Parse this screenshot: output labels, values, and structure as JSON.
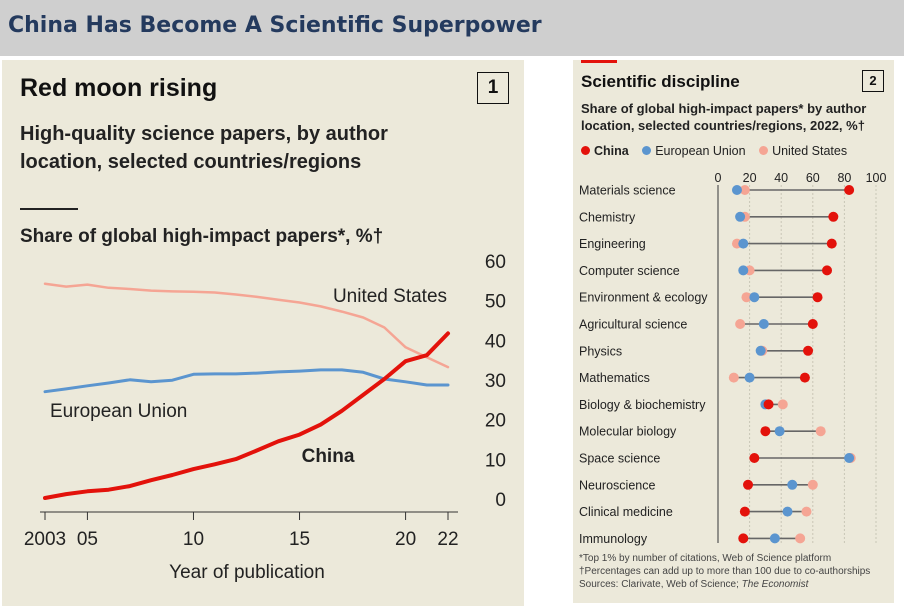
{
  "banner": {
    "title": "China Has Become A Scientific Superpower"
  },
  "panel1": {
    "title": "Red moon rising",
    "number": "1",
    "subtitle": "High-quality science papers, by author location, selected countries/regions",
    "measure": "Share of global high-impact papers*, %†"
  },
  "panel2": {
    "title": "Scientific discipline",
    "number": "2",
    "subtitle": "Share of global high-impact papers* by author location, selected countries/regions, 2022, %†",
    "legend": {
      "china": "China",
      "eu": "European Union",
      "us": "United States"
    },
    "footnote1": "*Top 1% by number of citations, Web of Science platform",
    "footnote2": "†Percentages can add up to more than 100 due to co-authorships",
    "sources_prefix": "Sources: Clarivate, Web of Science; ",
    "sources_italic": "The Economist"
  },
  "colors": {
    "china": "#e3120b",
    "eu": "#5b95cf",
    "us": "#f5a594",
    "connector": "#666666"
  },
  "chart_data": [
    {
      "type": "line",
      "title": "Red moon rising",
      "ylabel": "Share of global high-impact papers*, %†",
      "xlabel": "Year of publication",
      "ylim": [
        0,
        60
      ],
      "xlim": [
        2003,
        2022
      ],
      "yticks": [
        0,
        10,
        20,
        30,
        40,
        50,
        60
      ],
      "xticks": [
        2003,
        2005,
        2010,
        2015,
        2020,
        2022
      ],
      "xtick_labels": [
        "2003",
        "05",
        "10",
        "15",
        "20",
        "22"
      ],
      "grid": false,
      "series": [
        {
          "name": "United States",
          "color": "#f5a594",
          "points": [
            [
              2003,
              54.5
            ],
            [
              2004,
              53.8
            ],
            [
              2005,
              54.3
            ],
            [
              2006,
              53.5
            ],
            [
              2007,
              53.2
            ],
            [
              2008,
              52.8
            ],
            [
              2009,
              52.6
            ],
            [
              2010,
              52.5
            ],
            [
              2011,
              52.3
            ],
            [
              2012,
              51.8
            ],
            [
              2013,
              51.2
            ],
            [
              2014,
              50.5
            ],
            [
              2015,
              49.8
            ],
            [
              2016,
              48.8
            ],
            [
              2017,
              47.5
            ],
            [
              2018,
              46.0
            ],
            [
              2019,
              43.5
            ],
            [
              2020,
              38.5
            ],
            [
              2021,
              36.0
            ],
            [
              2022,
              33.5
            ]
          ]
        },
        {
          "name": "European Union",
          "color": "#5b95cf",
          "points": [
            [
              2003,
              27.3
            ],
            [
              2004,
              28.0
            ],
            [
              2005,
              28.8
            ],
            [
              2006,
              29.5
            ],
            [
              2007,
              30.3
            ],
            [
              2008,
              29.8
            ],
            [
              2009,
              30.2
            ],
            [
              2010,
              31.7
            ],
            [
              2011,
              31.8
            ],
            [
              2012,
              31.8
            ],
            [
              2013,
              32.0
            ],
            [
              2014,
              32.3
            ],
            [
              2015,
              32.5
            ],
            [
              2016,
              32.8
            ],
            [
              2017,
              32.8
            ],
            [
              2018,
              32.2
            ],
            [
              2019,
              30.5
            ],
            [
              2020,
              29.8
            ],
            [
              2021,
              29.0
            ],
            [
              2022,
              29.0
            ]
          ]
        },
        {
          "name": "China",
          "color": "#e3120b",
          "points": [
            [
              2003,
              0.5
            ],
            [
              2004,
              1.5
            ],
            [
              2005,
              2.2
            ],
            [
              2006,
              2.6
            ],
            [
              2007,
              3.5
            ],
            [
              2008,
              5.0
            ],
            [
              2009,
              6.3
            ],
            [
              2010,
              7.8
            ],
            [
              2011,
              9.0
            ],
            [
              2012,
              10.3
            ],
            [
              2013,
              12.5
            ],
            [
              2014,
              14.8
            ],
            [
              2015,
              16.5
            ],
            [
              2016,
              19.0
            ],
            [
              2017,
              22.5
            ],
            [
              2018,
              26.5
            ],
            [
              2019,
              30.5
            ],
            [
              2020,
              35.0
            ],
            [
              2021,
              36.5
            ],
            [
              2022,
              42.0
            ]
          ]
        }
      ]
    },
    {
      "type": "dot",
      "title": "Scientific discipline",
      "xlim": [
        0,
        100
      ],
      "xticks": [
        0,
        20,
        40,
        60,
        80,
        100
      ],
      "grid": true,
      "legend": "top",
      "categories": [
        "Materials science",
        "Chemistry",
        "Engineering",
        "Computer science",
        "Environment & ecology",
        "Agricultural science",
        "Physics",
        "Mathematics",
        "Biology & biochemistry",
        "Molecular biology",
        "Space science",
        "Neuroscience",
        "Clinical medicine",
        "Immunology"
      ],
      "series": [
        {
          "name": "China",
          "color": "#e3120b",
          "values": [
            83,
            73,
            72,
            69,
            63,
            60,
            57,
            55,
            32,
            30,
            23,
            19,
            17,
            16
          ]
        },
        {
          "name": "European Union",
          "color": "#5b95cf",
          "values": [
            12,
            14,
            16,
            16,
            23,
            29,
            27,
            20,
            30,
            39,
            83,
            47,
            44,
            36
          ]
        },
        {
          "name": "United States",
          "color": "#f5a594",
          "values": [
            17,
            17,
            12,
            20,
            18,
            14,
            28,
            10,
            41,
            65,
            84,
            60,
            56,
            52
          ]
        }
      ]
    }
  ]
}
